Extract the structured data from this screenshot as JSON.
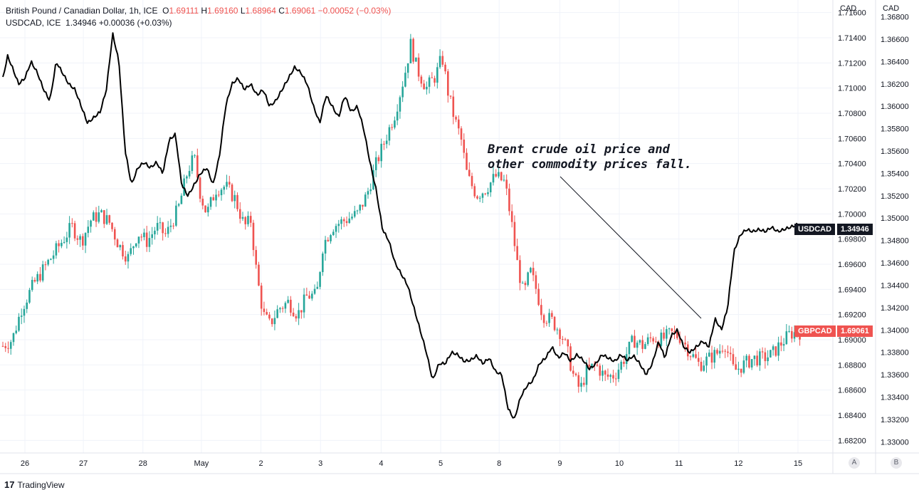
{
  "legend": {
    "line1": {
      "symbol": "British Pound / Canadian Dollar, 1h, ICE",
      "o_label": "O",
      "o_val": "1.69111",
      "h_label": "H",
      "h_val": "1.69160",
      "l_label": "L",
      "l_val": "1.68964",
      "c_label": "C",
      "c_val": "1.69061",
      "change": "−0.00052 (−0.03%)"
    },
    "line2": {
      "symbol": "USDCAD, ICE",
      "value": "1.34946",
      "change": "+0.00036 (+0.03%)"
    }
  },
  "axis_headers": {
    "left": "CAD",
    "right": "CAD"
  },
  "price_tags": {
    "usdcad_label": "USDCAD",
    "usdcad_value": "1.34946",
    "gbpcad_label": "GBPCAD",
    "gbpcad_value": "1.69061"
  },
  "annotation": "Brent crude oil price and\nother commodity prices fall.",
  "buttons": {
    "a": "A",
    "b": "B"
  },
  "footer": {
    "logo": "17",
    "brand": "TradingView"
  },
  "colors": {
    "up": "#26a69a",
    "down": "#ef5350",
    "line": "#000000",
    "grid": "#f0f3fa"
  },
  "chart_data": {
    "type": "candlestick+line",
    "x_tick_labels": [
      "26",
      "27",
      "28",
      "May",
      "2",
      "3",
      "4",
      "5",
      "8",
      "9",
      "10",
      "11",
      "12",
      "15"
    ],
    "axis_gbpcad": {
      "ticks": [
        "1.71600",
        "1.71400",
        "1.71200",
        "1.71000",
        "1.70800",
        "1.70600",
        "1.70400",
        "1.70200",
        "1.70000",
        "1.69800",
        "1.69600",
        "1.69400",
        "1.69200",
        "1.69000",
        "1.68800",
        "1.68600",
        "1.68400",
        "1.68200"
      ],
      "range": [
        1.681,
        1.717
      ]
    },
    "axis_usdcad": {
      "ticks": [
        "1.36800",
        "1.36600",
        "1.36400",
        "1.36200",
        "1.36000",
        "1.35800",
        "1.35600",
        "1.35400",
        "1.35200",
        "1.35000",
        "1.34800",
        "1.34600",
        "1.34400",
        "1.34200",
        "1.34000",
        "1.33800",
        "1.33600",
        "1.33400",
        "1.33200",
        "1.33000"
      ],
      "range": [
        1.329,
        1.3695
      ]
    },
    "gbpcad_path": [
      [
        0,
        1.6895
      ],
      [
        0.3,
        1.69
      ],
      [
        0.6,
        1.6925
      ],
      [
        1,
        1.6945
      ],
      [
        1.4,
        1.696
      ],
      [
        1.8,
        1.6975
      ],
      [
        2.2,
        1.699
      ],
      [
        2.5,
        1.6978
      ],
      [
        2.8,
        1.6995
      ],
      [
        3.1,
        1.7
      ],
      [
        3.4,
        1.6993
      ],
      [
        3.7,
        1.6975
      ],
      [
        4,
        1.6965
      ],
      [
        4.3,
        1.6985
      ],
      [
        4.6,
        1.6978
      ],
      [
        4.9,
        1.699
      ],
      [
        5.2,
        1.6983
      ],
      [
        5.6,
        1.7005
      ],
      [
        5.9,
        1.7035
      ],
      [
        6.1,
        1.7045
      ],
      [
        6.3,
        1.7015
      ],
      [
        6.5,
        1.7
      ],
      [
        6.8,
        1.702
      ],
      [
        7.1,
        1.7022
      ],
      [
        7.4,
        1.7012
      ],
      [
        7.7,
        1.699
      ],
      [
        7.9,
        1.6995
      ],
      [
        8.1,
        1.695
      ],
      [
        8.3,
        1.692
      ],
      [
        8.5,
        1.6912
      ],
      [
        8.8,
        1.6925
      ],
      [
        9.1,
        1.693
      ],
      [
        9.4,
        1.692
      ],
      [
        9.7,
        1.6935
      ],
      [
        10,
        1.6935
      ],
      [
        10.2,
        1.6975
      ],
      [
        10.5,
        1.699
      ],
      [
        10.9,
        1.6995
      ],
      [
        11.3,
        1.7
      ],
      [
        11.6,
        1.7015
      ],
      [
        11.9,
        1.704
      ],
      [
        12.2,
        1.706
      ],
      [
        12.5,
        1.708
      ],
      [
        12.8,
        1.711
      ],
      [
        13,
        1.7135
      ],
      [
        13.2,
        1.7115
      ],
      [
        13.5,
        1.71
      ],
      [
        13.8,
        1.711
      ],
      [
        14,
        1.7125
      ],
      [
        14.2,
        1.7095
      ],
      [
        14.4,
        1.7075
      ],
      [
        14.6,
        1.706
      ],
      [
        14.8,
        1.703
      ],
      [
        15.1,
        1.7015
      ],
      [
        15.4,
        1.702
      ],
      [
        15.7,
        1.703
      ],
      [
        16,
        1.7025
      ],
      [
        16.2,
        1.6995
      ],
      [
        16.4,
        1.696
      ],
      [
        16.6,
        1.6935
      ],
      [
        16.8,
        1.6955
      ],
      [
        17,
        1.694
      ],
      [
        17.2,
        1.692
      ],
      [
        17.5,
        1.6915
      ],
      [
        17.8,
        1.6905
      ],
      [
        18,
        1.689
      ],
      [
        18.2,
        1.687
      ],
      [
        18.4,
        1.686
      ],
      [
        18.6,
        1.6875
      ],
      [
        18.9,
        1.688
      ],
      [
        19.2,
        1.687
      ],
      [
        19.5,
        1.6872
      ],
      [
        19.8,
        1.6885
      ],
      [
        20.1,
        1.69
      ],
      [
        20.4,
        1.6895
      ],
      [
        20.7,
        1.6902
      ],
      [
        21,
        1.69
      ],
      [
        21.3,
        1.6905
      ],
      [
        21.6,
        1.6902
      ],
      [
        21.9,
        1.689
      ],
      [
        22.2,
        1.688
      ],
      [
        22.5,
        1.6885
      ],
      [
        22.8,
        1.689
      ],
      [
        23,
        1.6898
      ],
      [
        23.3,
        1.6875
      ],
      [
        23.6,
        1.688
      ],
      [
        23.9,
        1.6885
      ],
      [
        24.2,
        1.6885
      ],
      [
        24.5,
        1.6888
      ],
      [
        24.8,
        1.6897
      ],
      [
        25.1,
        1.6905
      ],
      [
        25.4,
        1.6906
      ]
    ],
    "usdcad_path": [
      [
        0,
        1.3625
      ],
      [
        0.15,
        1.3645
      ],
      [
        0.3,
        1.3635
      ],
      [
        0.5,
        1.362
      ],
      [
        0.7,
        1.3625
      ],
      [
        0.9,
        1.364
      ],
      [
        1.1,
        1.363
      ],
      [
        1.3,
        1.3615
      ],
      [
        1.5,
        1.3605
      ],
      [
        1.7,
        1.364
      ],
      [
        1.9,
        1.363
      ],
      [
        2.1,
        1.362
      ],
      [
        2.3,
        1.3615
      ],
      [
        2.5,
        1.36
      ],
      [
        2.7,
        1.3585
      ],
      [
        2.9,
        1.359
      ],
      [
        3.1,
        1.3595
      ],
      [
        3.3,
        1.3615
      ],
      [
        3.5,
        1.3665
      ],
      [
        3.7,
        1.364
      ],
      [
        3.9,
        1.356
      ],
      [
        4.1,
        1.353
      ],
      [
        4.3,
        1.3545
      ],
      [
        4.5,
        1.355
      ],
      [
        4.7,
        1.3545
      ],
      [
        4.9,
        1.355
      ],
      [
        5.1,
        1.354
      ],
      [
        5.3,
        1.357
      ],
      [
        5.5,
        1.3575
      ],
      [
        5.7,
        1.353
      ],
      [
        5.9,
        1.352
      ],
      [
        6.1,
        1.353
      ],
      [
        6.3,
        1.354
      ],
      [
        6.5,
        1.3545
      ],
      [
        6.7,
        1.353
      ],
      [
        6.9,
        1.3555
      ],
      [
        7.1,
        1.36
      ],
      [
        7.3,
        1.362
      ],
      [
        7.5,
        1.3625
      ],
      [
        7.7,
        1.3615
      ],
      [
        7.9,
        1.362
      ],
      [
        8.1,
        1.361
      ],
      [
        8.3,
        1.3615
      ],
      [
        8.5,
        1.36
      ],
      [
        8.7,
        1.3605
      ],
      [
        8.9,
        1.3615
      ],
      [
        9.1,
        1.3625
      ],
      [
        9.3,
        1.3635
      ],
      [
        9.5,
        1.363
      ],
      [
        9.7,
        1.362
      ],
      [
        9.9,
        1.36
      ],
      [
        10.1,
        1.3585
      ],
      [
        10.3,
        1.361
      ],
      [
        10.5,
        1.36
      ],
      [
        10.7,
        1.359
      ],
      [
        10.9,
        1.361
      ],
      [
        11.1,
        1.3595
      ],
      [
        11.3,
        1.36
      ],
      [
        11.5,
        1.358
      ],
      [
        11.7,
        1.355
      ],
      [
        11.9,
        1.3525
      ],
      [
        12.1,
        1.349
      ],
      [
        12.3,
        1.348
      ],
      [
        12.5,
        1.346
      ],
      [
        12.7,
        1.345
      ],
      [
        12.9,
        1.344
      ],
      [
        13.1,
        1.342
      ],
      [
        13.3,
        1.34
      ],
      [
        13.5,
        1.338
      ],
      [
        13.7,
        1.3355
      ],
      [
        13.9,
        1.337
      ],
      [
        14.1,
        1.337
      ],
      [
        14.3,
        1.338
      ],
      [
        14.5,
        1.3378
      ],
      [
        14.7,
        1.3372
      ],
      [
        14.9,
        1.3373
      ],
      [
        15.1,
        1.3377
      ],
      [
        15.3,
        1.337
      ],
      [
        15.5,
        1.3375
      ],
      [
        15.7,
        1.3363
      ],
      [
        15.9,
        1.336
      ],
      [
        16.1,
        1.333
      ],
      [
        16.3,
        1.332
      ],
      [
        16.5,
        1.334
      ],
      [
        16.7,
        1.335
      ],
      [
        16.9,
        1.3355
      ],
      [
        17.1,
        1.337
      ],
      [
        17.3,
        1.3375
      ],
      [
        17.5,
        1.3385
      ],
      [
        17.7,
        1.3375
      ],
      [
        17.9,
        1.338
      ],
      [
        18.1,
        1.3372
      ],
      [
        18.3,
        1.3378
      ],
      [
        18.5,
        1.3373
      ],
      [
        18.7,
        1.3365
      ],
      [
        18.9,
        1.337
      ],
      [
        19.1,
        1.3378
      ],
      [
        19.3,
        1.3375
      ],
      [
        19.5,
        1.3372
      ],
      [
        19.7,
        1.3378
      ],
      [
        19.9,
        1.3373
      ],
      [
        20.1,
        1.3377
      ],
      [
        20.3,
        1.337
      ],
      [
        20.5,
        1.336
      ],
      [
        20.7,
        1.337
      ],
      [
        20.9,
        1.339
      ],
      [
        21.1,
        1.3375
      ],
      [
        21.3,
        1.3395
      ],
      [
        21.5,
        1.34
      ],
      [
        21.7,
        1.3385
      ],
      [
        21.9,
        1.338
      ],
      [
        22.1,
        1.3385
      ],
      [
        22.3,
        1.339
      ],
      [
        22.5,
        1.3385
      ],
      [
        22.7,
        1.341
      ],
      [
        22.9,
        1.34
      ],
      [
        23.1,
        1.342
      ],
      [
        23.3,
        1.347
      ],
      [
        23.5,
        1.3485
      ],
      [
        23.7,
        1.349
      ],
      [
        23.9,
        1.3488
      ],
      [
        24.1,
        1.349
      ],
      [
        24.3,
        1.3488
      ],
      [
        24.5,
        1.3492
      ],
      [
        24.7,
        1.3488
      ],
      [
        24.9,
        1.349
      ],
      [
        25.1,
        1.3492
      ],
      [
        25.3,
        1.3494
      ],
      [
        25.4,
        1.34946
      ]
    ]
  }
}
